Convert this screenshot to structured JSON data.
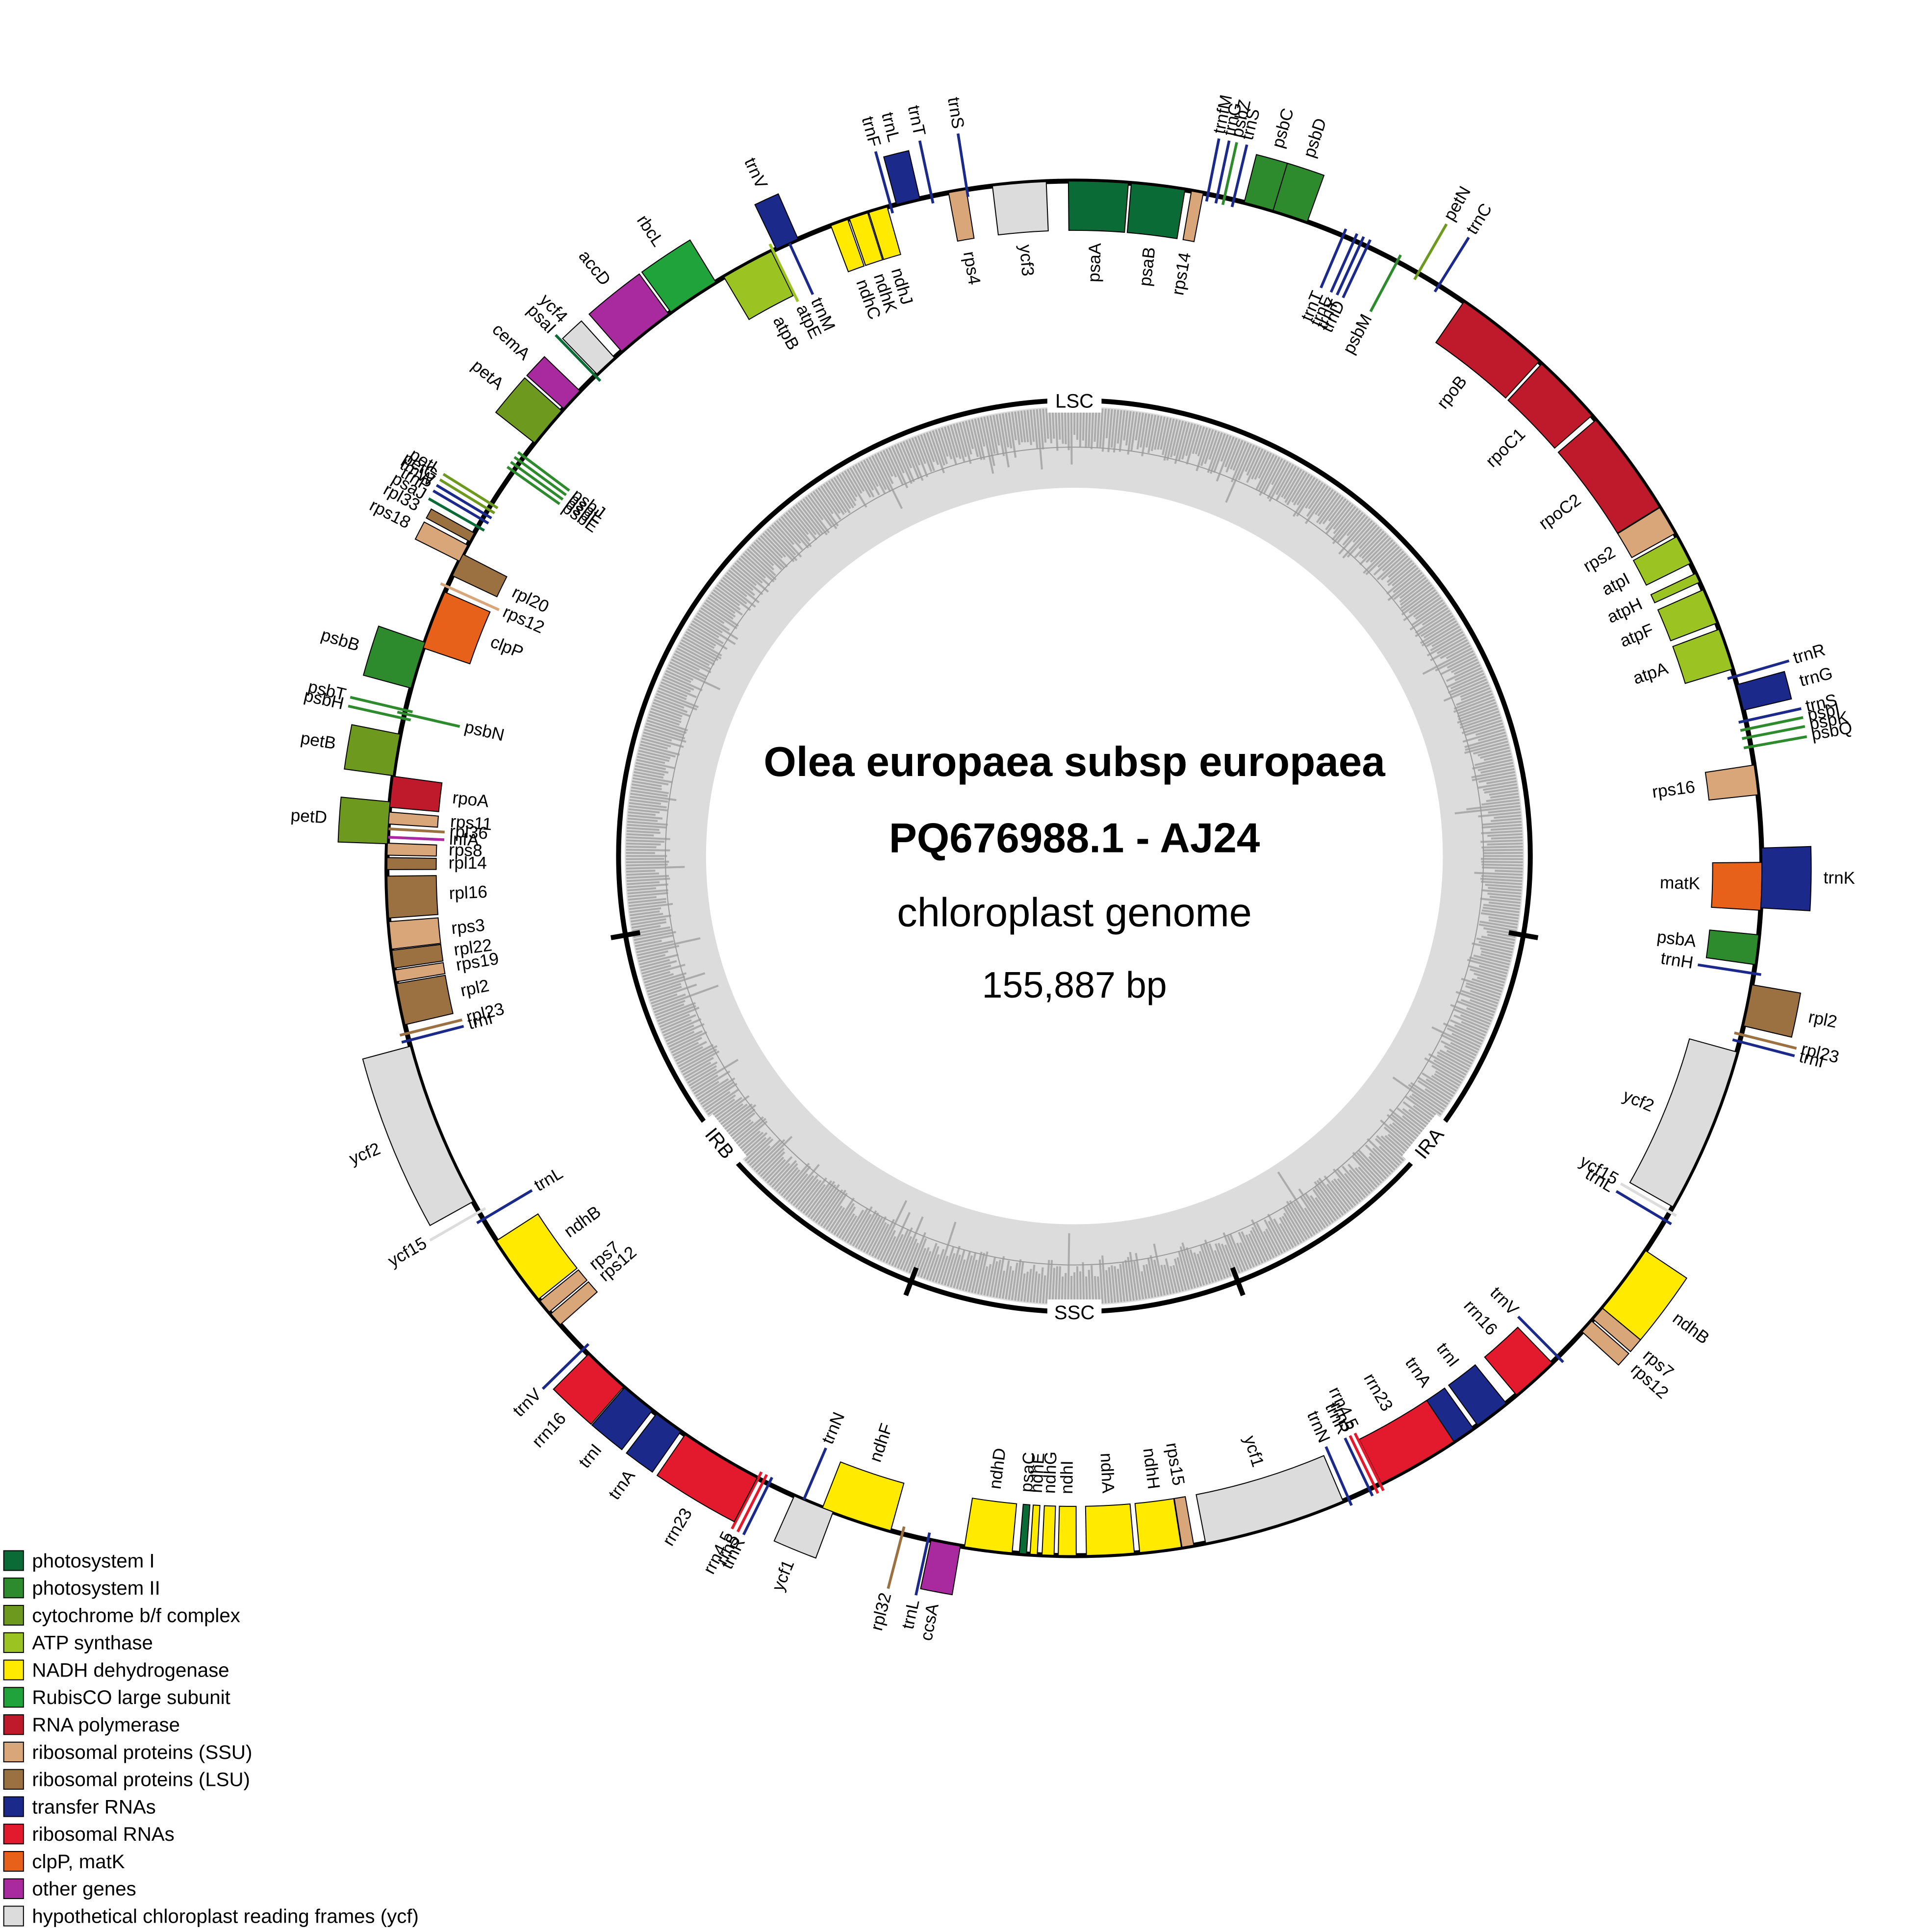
{
  "title": {
    "organism": "Olea europaea subsp europaea",
    "accession": "PQ676988.1 - AJ24",
    "description": "chloroplast genome",
    "length": "155,887 bp"
  },
  "regions": [
    "LSC",
    "IRA",
    "SSC",
    "IRB"
  ],
  "genes": [
    {
      "label": "psaA",
      "color": "#0b6b37"
    },
    {
      "label": "psaB",
      "color": "#0b6b37"
    },
    {
      "label": "rps14",
      "color": "#d8a679"
    },
    {
      "label": "trnfM",
      "color": "#1b2a8a"
    },
    {
      "label": "trnG",
      "color": "#1b2a8a"
    },
    {
      "label": "psbZ",
      "color": "#2d8a2d"
    },
    {
      "label": "trnS",
      "color": "#1b2a8a"
    },
    {
      "label": "psbC",
      "color": "#2d8a2d"
    },
    {
      "label": "psbD",
      "color": "#2d8a2d"
    },
    {
      "label": "trnT",
      "color": "#1b2a8a"
    },
    {
      "label": "trnE",
      "color": "#1b2a8a"
    },
    {
      "label": "trnY",
      "color": "#1b2a8a"
    },
    {
      "label": "trnD",
      "color": "#1b2a8a"
    },
    {
      "label": "psbM",
      "color": "#2d8a2d"
    },
    {
      "label": "petN",
      "color": "#6e991f"
    },
    {
      "label": "trnC",
      "color": "#1b2a8a"
    },
    {
      "label": "rpoB",
      "color": "#bf1a2c"
    },
    {
      "label": "rpoC1",
      "color": "#bf1a2c"
    },
    {
      "label": "rpoC2",
      "color": "#bf1a2c"
    },
    {
      "label": "rps2",
      "color": "#d8a679"
    },
    {
      "label": "atpI",
      "color": "#9bc423"
    },
    {
      "label": "atpH",
      "color": "#9bc423"
    },
    {
      "label": "atpF",
      "color": "#9bc423"
    },
    {
      "label": "atpA",
      "color": "#9bc423"
    },
    {
      "label": "trnR",
      "color": "#1b2a8a"
    },
    {
      "label": "trnG",
      "color": "#1b2a8a"
    },
    {
      "label": "trnS",
      "color": "#1b2a8a"
    },
    {
      "label": "psbI",
      "color": "#2d8a2d"
    },
    {
      "label": "psbK",
      "color": "#2d8a2d"
    },
    {
      "label": "psbQ",
      "color": "#2d8a2d"
    },
    {
      "label": "rps16",
      "color": "#d8a679"
    },
    {
      "label": "matK",
      "color": "#e8611a"
    },
    {
      "label": "trnK",
      "color": "#1b2a8a"
    },
    {
      "label": "psbA",
      "color": "#2d8a2d"
    },
    {
      "label": "trnH",
      "color": "#1b2a8a"
    },
    {
      "label": "rpl2",
      "color": "#9c7141"
    },
    {
      "label": "rpl23",
      "color": "#9c7141"
    },
    {
      "label": "trnI",
      "color": "#1b2a8a"
    },
    {
      "label": "ycf2",
      "color": "#dcdcdc"
    },
    {
      "label": "ycf15",
      "color": "#dcdcdc"
    },
    {
      "label": "trnL",
      "color": "#1b2a8a"
    },
    {
      "label": "ndhB",
      "color": "#ffea00"
    },
    {
      "label": "rps7",
      "color": "#d8a679"
    },
    {
      "label": "rps12",
      "color": "#d8a679"
    },
    {
      "label": "trnV",
      "color": "#1b2a8a"
    },
    {
      "label": "rrn16",
      "color": "#e31a2d"
    },
    {
      "label": "trnI",
      "color": "#1b2a8a"
    },
    {
      "label": "trnA",
      "color": "#1b2a8a"
    },
    {
      "label": "rrn23",
      "color": "#e31a2d"
    },
    {
      "label": "rrn4.5",
      "color": "#e31a2d"
    },
    {
      "label": "rrn5",
      "color": "#e31a2d"
    },
    {
      "label": "trnR",
      "color": "#1b2a8a"
    },
    {
      "label": "trnN",
      "color": "#1b2a8a"
    },
    {
      "label": "ycf1",
      "color": "#dcdcdc"
    },
    {
      "label": "rps15",
      "color": "#d8a679"
    },
    {
      "label": "ndhH",
      "color": "#ffea00"
    },
    {
      "label": "ndhA",
      "color": "#ffea00"
    },
    {
      "label": "ndhI",
      "color": "#ffea00"
    },
    {
      "label": "ndhG",
      "color": "#ffea00"
    },
    {
      "label": "ndhE",
      "color": "#ffea00"
    },
    {
      "label": "psaC",
      "color": "#0b6b37"
    },
    {
      "label": "ndhD",
      "color": "#ffea00"
    },
    {
      "label": "ccsA",
      "color": "#a82a9e"
    },
    {
      "label": "trnL",
      "color": "#1b2a8a"
    },
    {
      "label": "rpl32",
      "color": "#9c7141"
    },
    {
      "label": "ndhF",
      "color": "#ffea00"
    },
    {
      "label": "trnN",
      "color": "#1b2a8a"
    },
    {
      "label": "ycf1",
      "color": "#dcdcdc"
    },
    {
      "label": "trnR",
      "color": "#1b2a8a"
    },
    {
      "label": "rrn5",
      "color": "#e31a2d"
    },
    {
      "label": "rrn4.5",
      "color": "#e31a2d"
    },
    {
      "label": "rrn23",
      "color": "#e31a2d"
    },
    {
      "label": "trnA",
      "color": "#1b2a8a"
    },
    {
      "label": "trnI",
      "color": "#1b2a8a"
    },
    {
      "label": "rrn16",
      "color": "#e31a2d"
    },
    {
      "label": "trnV",
      "color": "#1b2a8a"
    },
    {
      "label": "rps12",
      "color": "#d8a679"
    },
    {
      "label": "rps7",
      "color": "#d8a679"
    },
    {
      "label": "ndhB",
      "color": "#ffea00"
    },
    {
      "label": "trnL",
      "color": "#1b2a8a"
    },
    {
      "label": "ycf15",
      "color": "#dcdcdc"
    },
    {
      "label": "ycf2",
      "color": "#dcdcdc"
    },
    {
      "label": "trnI",
      "color": "#1b2a8a"
    },
    {
      "label": "rpl23",
      "color": "#9c7141"
    },
    {
      "label": "rpl2",
      "color": "#9c7141"
    },
    {
      "label": "rps19",
      "color": "#d8a679"
    },
    {
      "label": "rpl22",
      "color": "#9c7141"
    },
    {
      "label": "rps3",
      "color": "#d8a679"
    },
    {
      "label": "rpl16",
      "color": "#9c7141"
    },
    {
      "label": "rpl14",
      "color": "#9c7141"
    },
    {
      "label": "rps8",
      "color": "#d8a679"
    },
    {
      "label": "infA",
      "color": "#a82a9e"
    },
    {
      "label": "rpl36",
      "color": "#9c7141"
    },
    {
      "label": "rps11",
      "color": "#d8a679"
    },
    {
      "label": "rpoA",
      "color": "#bf1a2c"
    },
    {
      "label": "petD",
      "color": "#6e991f"
    },
    {
      "label": "petB",
      "color": "#6e991f"
    },
    {
      "label": "psbH",
      "color": "#2d8a2d"
    },
    {
      "label": "psbT",
      "color": "#2d8a2d"
    },
    {
      "label": "psbN",
      "color": "#2d8a2d"
    },
    {
      "label": "psbB",
      "color": "#2d8a2d"
    },
    {
      "label": "clpP",
      "color": "#e8611a"
    },
    {
      "label": "rps12",
      "color": "#d8a679"
    },
    {
      "label": "rpl20",
      "color": "#9c7141"
    },
    {
      "label": "rps18",
      "color": "#d8a679"
    },
    {
      "label": "rpl33",
      "color": "#9c7141"
    },
    {
      "label": "psaJ",
      "color": "#0b6b37"
    },
    {
      "label": "trnP",
      "color": "#1b2a8a"
    },
    {
      "label": "trnW",
      "color": "#1b2a8a"
    },
    {
      "label": "petG",
      "color": "#6e991f"
    },
    {
      "label": "petL",
      "color": "#6e991f"
    },
    {
      "label": "psbE",
      "color": "#2d8a2d"
    },
    {
      "label": "psbF",
      "color": "#2d8a2d"
    },
    {
      "label": "psbL",
      "color": "#2d8a2d"
    },
    {
      "label": "psbJ",
      "color": "#2d8a2d"
    },
    {
      "label": "petA",
      "color": "#6e991f"
    },
    {
      "label": "cemA",
      "color": "#a82a9e"
    },
    {
      "label": "psaI",
      "color": "#0b6b37"
    },
    {
      "label": "ycf4",
      "color": "#dcdcdc"
    },
    {
      "label": "accD",
      "color": "#a82a9e"
    },
    {
      "label": "rbcL",
      "color": "#1fa33a"
    },
    {
      "label": "atpB",
      "color": "#9bc423"
    },
    {
      "label": "atpE",
      "color": "#9bc423"
    },
    {
      "label": "trnM",
      "color": "#1b2a8a"
    },
    {
      "label": "trnV",
      "color": "#1b2a8a"
    },
    {
      "label": "ndhC",
      "color": "#ffea00"
    },
    {
      "label": "ndhK",
      "color": "#ffea00"
    },
    {
      "label": "ndhJ",
      "color": "#ffea00"
    },
    {
      "label": "trnF",
      "color": "#1b2a8a"
    },
    {
      "label": "trnL",
      "color": "#1b2a8a"
    },
    {
      "label": "trnT",
      "color": "#1b2a8a"
    },
    {
      "label": "rps4",
      "color": "#d8a679"
    },
    {
      "label": "trnS",
      "color": "#1b2a8a"
    },
    {
      "label": "ycf3",
      "color": "#dcdcdc"
    }
  ],
  "legend": [
    {
      "label": "photosystem I",
      "color": "#0b6b37"
    },
    {
      "label": "photosystem II",
      "color": "#2d8a2d"
    },
    {
      "label": "cytochrome b/f complex",
      "color": "#6e991f"
    },
    {
      "label": "ATP synthase",
      "color": "#9bc423"
    },
    {
      "label": "NADH dehydrogenase",
      "color": "#ffea00"
    },
    {
      "label": "RubisCO large subunit",
      "color": "#1fa33a"
    },
    {
      "label": "RNA polymerase",
      "color": "#bf1a2c"
    },
    {
      "label": "ribosomal proteins (SSU)",
      "color": "#d8a679"
    },
    {
      "label": "ribosomal proteins (LSU)",
      "color": "#9c7141"
    },
    {
      "label": "transfer RNAs",
      "color": "#1b2a8a"
    },
    {
      "label": "ribosomal RNAs",
      "color": "#e31a2d"
    },
    {
      "label": "clpP, matK",
      "color": "#e8611a"
    },
    {
      "label": "other genes",
      "color": "#a82a9e"
    },
    {
      "label": "hypothetical chloroplast reading frames (ycf)",
      "color": "#dcdcdc"
    }
  ]
}
